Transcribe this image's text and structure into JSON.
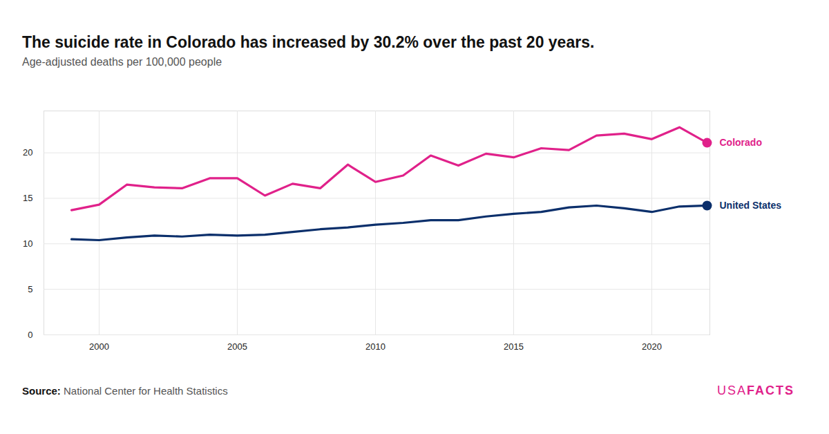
{
  "chart_data": {
    "type": "line",
    "title": "The suicide rate in Colorado has increased by 30.2% over the past 20 years.",
    "subtitle": "Age-adjusted deaths per 100,000 people",
    "source_label": "Source:",
    "source": "National Center for Health Statistics",
    "branding": [
      "USA",
      "FACTS"
    ],
    "x": [
      1999,
      2000,
      2001,
      2002,
      2003,
      2004,
      2005,
      2006,
      2007,
      2008,
      2009,
      2010,
      2011,
      2012,
      2013,
      2014,
      2015,
      2016,
      2017,
      2018,
      2019,
      2020,
      2021,
      2022
    ],
    "series": [
      {
        "name": "Colorado",
        "color": "#e0218a",
        "values": [
          13.7,
          14.3,
          16.5,
          16.2,
          16.1,
          17.2,
          17.2,
          15.3,
          16.6,
          16.1,
          18.7,
          16.8,
          17.5,
          19.7,
          18.6,
          19.9,
          19.5,
          20.5,
          20.3,
          21.9,
          22.1,
          21.5,
          22.8,
          21.1
        ]
      },
      {
        "name": "United States",
        "color": "#0b2f6b",
        "values": [
          10.5,
          10.4,
          10.7,
          10.9,
          10.8,
          11.0,
          10.9,
          11.0,
          11.3,
          11.6,
          11.8,
          12.1,
          12.3,
          12.6,
          12.6,
          13.0,
          13.3,
          13.5,
          14.0,
          14.2,
          13.9,
          13.5,
          14.1,
          14.2
        ]
      }
    ],
    "xlim": [
      1998,
      2022.1
    ],
    "xticks": [
      2000,
      2005,
      2010,
      2015,
      2020
    ],
    "ylim": [
      0,
      24.6
    ],
    "yticks": [
      0,
      5,
      10,
      15,
      20
    ],
    "grid": true
  }
}
